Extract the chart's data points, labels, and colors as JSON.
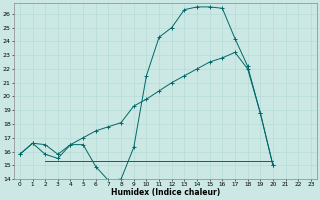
{
  "xlabel": "Humidex (Indice chaleur)",
  "bg_color": "#cce8e4",
  "line_color": "#006868",
  "grid_color": "#b0d8d4",
  "xlim": [
    -0.5,
    23.5
  ],
  "ylim": [
    14,
    26.8
  ],
  "xticks": [
    0,
    1,
    2,
    3,
    4,
    5,
    6,
    7,
    8,
    9,
    10,
    11,
    12,
    13,
    14,
    15,
    16,
    17,
    18,
    19,
    20,
    21,
    22,
    23
  ],
  "yticks": [
    14,
    15,
    16,
    17,
    18,
    19,
    20,
    21,
    22,
    23,
    24,
    25,
    26
  ],
  "line1_x": [
    0,
    1,
    2,
    3,
    4,
    5,
    6,
    7,
    8,
    9,
    10,
    11,
    12,
    13,
    14,
    15,
    16,
    17,
    18,
    19,
    20
  ],
  "line1_y": [
    15.8,
    16.6,
    15.8,
    15.5,
    16.5,
    16.5,
    14.9,
    13.9,
    14.0,
    16.3,
    21.5,
    24.3,
    25.0,
    26.3,
    26.5,
    26.5,
    26.4,
    24.2,
    22.2,
    18.8,
    15.0
  ],
  "line2_x": [
    0,
    1,
    2,
    3,
    4,
    5,
    6,
    7,
    8,
    9,
    10,
    11,
    12,
    13,
    14,
    15,
    16,
    17,
    18,
    19,
    20
  ],
  "line2_y": [
    15.8,
    16.6,
    16.5,
    15.8,
    16.5,
    17.0,
    17.5,
    17.8,
    18.1,
    19.3,
    19.8,
    20.4,
    21.0,
    21.5,
    22.0,
    22.5,
    22.8,
    23.2,
    22.0,
    18.8,
    15.0
  ],
  "line3_x": [
    2,
    3,
    4,
    5,
    6,
    7,
    8,
    9,
    10,
    11,
    12,
    13,
    14,
    15,
    16,
    17,
    18,
    19,
    20
  ],
  "line3_y": [
    15.3,
    15.3,
    15.3,
    15.3,
    15.3,
    15.3,
    15.3,
    15.3,
    15.3,
    15.3,
    15.3,
    15.3,
    15.3,
    15.3,
    15.3,
    15.3,
    15.3,
    15.3,
    15.3
  ],
  "figsize": [
    3.2,
    2.0
  ],
  "dpi": 100
}
